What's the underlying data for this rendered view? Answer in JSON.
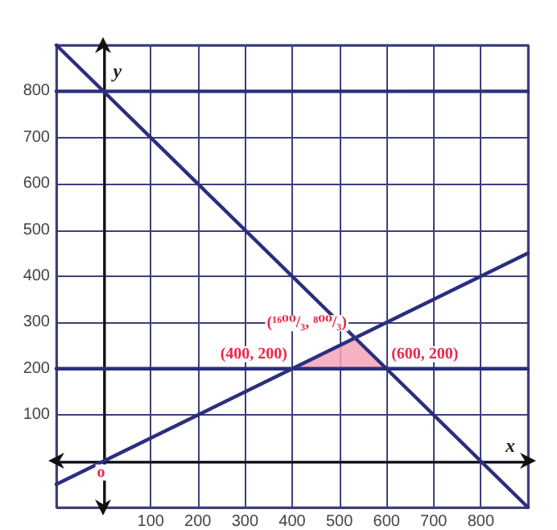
{
  "chart_data": {
    "type": "line",
    "xlabel": "x",
    "ylabel": "y",
    "xlim": [
      -100,
      900
    ],
    "ylim": [
      -100,
      900
    ],
    "xticks": [
      {
        "value": -100,
        "label": null
      },
      {
        "value": 0,
        "label": null
      },
      100,
      200,
      300,
      400,
      500,
      600,
      700,
      800,
      {
        "value": 900,
        "label": null
      }
    ],
    "yticks": [
      {
        "value": -100,
        "label": null
      },
      {
        "value": 0,
        "label": null
      },
      100,
      200,
      300,
      400,
      500,
      600,
      700,
      800,
      {
        "value": 900,
        "label": null
      }
    ],
    "grid": true,
    "marker": "none",
    "line_style": "solid",
    "series": [
      {
        "color": "#2b2f7e",
        "x": [
          -100,
          900
        ],
        "values": [
          900,
          -100
        ]
      },
      {
        "color": "#2b2f7e",
        "x": [
          -100,
          900
        ],
        "values": [
          -50,
          450
        ]
      },
      {
        "color": "#2b2f7e",
        "x": [
          -100,
          900
        ],
        "values": [
          800,
          800
        ]
      },
      {
        "color": "#2b2f7e",
        "x": [
          -100,
          900
        ],
        "values": [
          200,
          200
        ]
      },
      {
        "type": "area",
        "color": "#f5a3b9",
        "x": [
          400,
          533,
          600
        ],
        "values": [
          200,
          267,
          200
        ]
      }
    ],
    "annotations": [
      {
        "text": "(400, 200)",
        "x": 400,
        "y": 200
      },
      {
        "text": "(¹⁶⁰⁰/₃, ⁸⁰⁰/₃)",
        "x": 533,
        "y": 267
      },
      {
        "text": "(600, 200)",
        "x": 600,
        "y": 200
      },
      {
        "text": "o",
        "x": 0,
        "y": 0
      }
    ]
  }
}
